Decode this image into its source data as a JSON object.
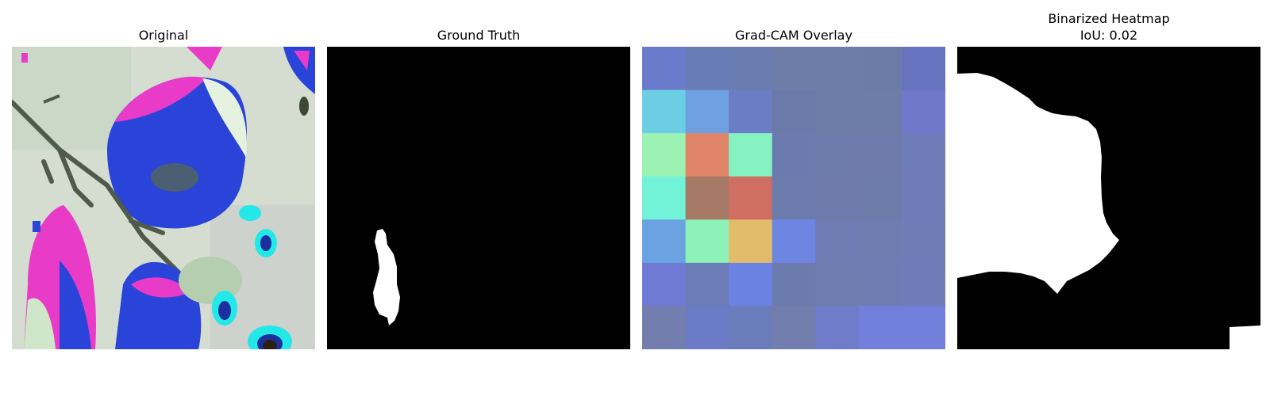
{
  "panels": [
    {
      "title": "Original"
    },
    {
      "title": "Ground Truth"
    },
    {
      "title": "Grad-CAM Overlay"
    },
    {
      "title": "Binarized Heatmap\nIoU: 0.02"
    }
  ],
  "colors": {
    "mask_foreground": "#ffffff",
    "mask_background": "#000000"
  },
  "gradcam_grid": [
    [
      "#6b7bcb",
      "#6a7cb6",
      "#6b7cb0",
      "#6e7ca8",
      "#6e7ca8",
      "#6c7ca8",
      "#6673bf"
    ],
    [
      "#6bcee2",
      "#6ea0e2",
      "#6b7dc4",
      "#6b7aa8",
      "#6e7ca8",
      "#6e7ca8",
      "#7078cc"
    ],
    [
      "#9bf2b3",
      "#e0856a",
      "#86f2c3",
      "#6b7bb0",
      "#6e7cab",
      "#6f7bab",
      "#6e7cb8"
    ],
    [
      "#72f2d6",
      "#a67a66",
      "#cf6f64",
      "#6b7cad",
      "#6f7cab",
      "#6e7cab",
      "#6f7cb8"
    ],
    [
      "#6aa2e2",
      "#8df2b8",
      "#e2bb6b",
      "#6c86e2",
      "#6f7cb3",
      "#6f7caf",
      "#6f7cb6"
    ],
    [
      "#6f7ad4",
      "#6b7cb6",
      "#6b82e2",
      "#6c7bae",
      "#6e7cb0",
      "#6e7cb2",
      "#6f7cb8"
    ],
    [
      "#727ead",
      "#6b7bc6",
      "#6b7cbb",
      "#727ead",
      "#6e7cca",
      "#727fdb",
      "#727fdb"
    ]
  ]
}
